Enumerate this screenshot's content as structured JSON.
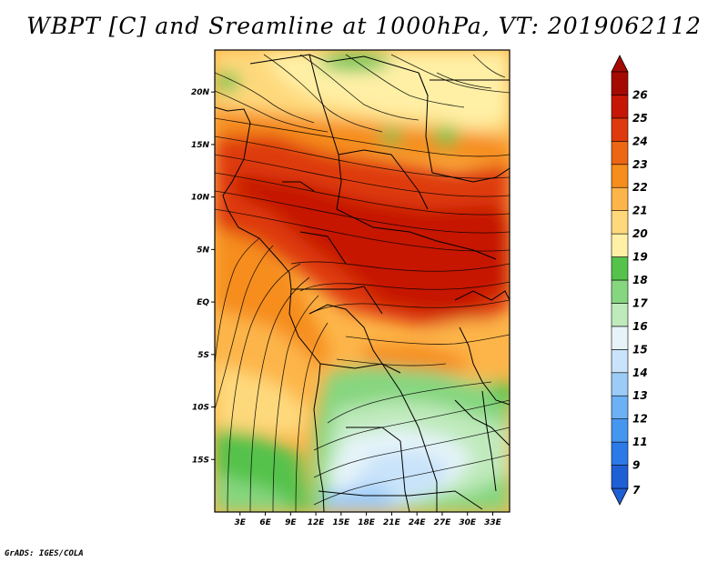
{
  "title": "WBPT [C] and Sreamline at 1000hPa, VT: 2019062112",
  "footer": "GrADS: IGES/COLA",
  "map": {
    "lon_range": [
      0,
      35
    ],
    "lat_range": [
      -20,
      24
    ],
    "x_ticks": [
      "3E",
      "6E",
      "9E",
      "12E",
      "15E",
      "18E",
      "21E",
      "24E",
      "27E",
      "30E",
      "33E"
    ],
    "x_tick_values": [
      3,
      6,
      9,
      12,
      15,
      18,
      21,
      24,
      27,
      30,
      33
    ],
    "y_ticks": [
      "20N",
      "15N",
      "10N",
      "5N",
      "EQ",
      "5S",
      "10S",
      "15S"
    ],
    "y_tick_values": [
      20,
      15,
      10,
      5,
      0,
      -5,
      -10,
      -15
    ]
  },
  "colorbar": {
    "labels": [
      "7",
      "9",
      "11",
      "12",
      "13",
      "14",
      "15",
      "16",
      "17",
      "18",
      "19",
      "20",
      "21",
      "22",
      "23",
      "24",
      "25",
      "26"
    ],
    "colors": [
      "#1f5fd6",
      "#2c7ae8",
      "#4596f0",
      "#6cb0f5",
      "#9ccbf7",
      "#c9e3fa",
      "#e6f4f9",
      "#bfeabc",
      "#86d67f",
      "#55c24b",
      "#fff0a6",
      "#fed97c",
      "#fdb54a",
      "#f68d1c",
      "#ec6614",
      "#de3a0e",
      "#c61606",
      "#a50a02"
    ]
  }
}
